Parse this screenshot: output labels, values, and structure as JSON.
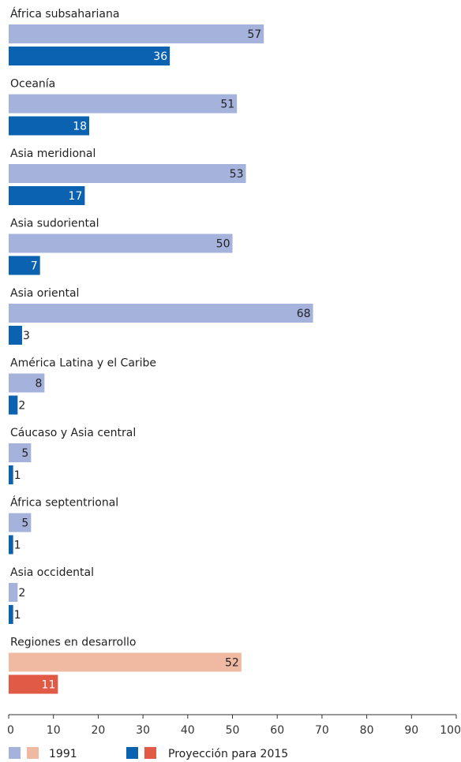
{
  "chart_data": {
    "type": "bar",
    "orientation": "horizontal",
    "title": "",
    "xlabel": "",
    "ylabel": "",
    "xlim": [
      0,
      100
    ],
    "xticks": [
      0,
      10,
      20,
      30,
      40,
      50,
      60,
      70,
      80,
      90,
      100
    ],
    "grid": false,
    "legend_position": "bottom",
    "categories": [
      "África subsahariana",
      "Oceanía",
      "Asia meridional",
      "Asia sudoriental",
      "Asia oriental",
      "América Latina y el Caribe",
      "Cáucaso y Asia central",
      "África septentrional",
      "Asia occidental",
      "Regiones en desarrollo"
    ],
    "series": [
      {
        "name": "1991",
        "values": [
          57,
          51,
          53,
          50,
          68,
          8,
          5,
          5,
          2,
          52
        ]
      },
      {
        "name": "Proyección para 2015",
        "values": [
          36,
          18,
          17,
          7,
          3,
          2,
          1,
          1,
          1,
          11
        ]
      }
    ],
    "colors": {
      "1991": "#a5b3dc",
      "2015": "#0a62b0",
      "1991_aggregate": "#f0b9a2",
      "2015_aggregate": "#e05a46"
    }
  }
}
